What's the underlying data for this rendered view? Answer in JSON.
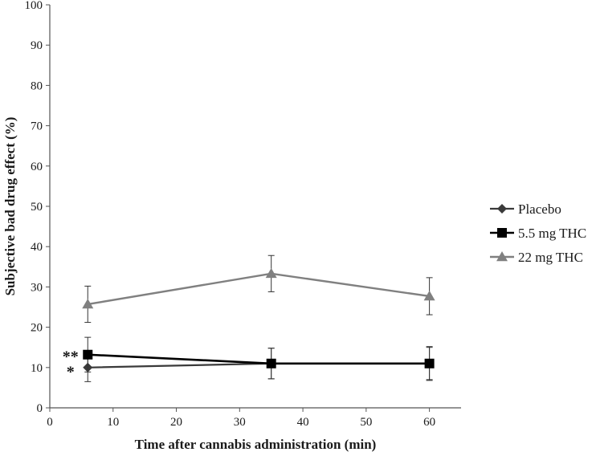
{
  "chart_data": {
    "type": "line",
    "title": "",
    "xlabel": "Time after cannabis administration (min)",
    "ylabel": "Subjective bad drug effect (%)",
    "xlim": [
      0,
      65
    ],
    "ylim": [
      0,
      100
    ],
    "xticks": [
      0,
      10,
      20,
      30,
      40,
      50,
      60
    ],
    "yticks": [
      0,
      10,
      20,
      30,
      40,
      50,
      60,
      70,
      80,
      90,
      100
    ],
    "grid": false,
    "legend_position": "right",
    "series": [
      {
        "name": "Placebo",
        "marker": "diamond",
        "color": "#3a3a3a",
        "x": [
          6,
          35,
          60
        ],
        "y": [
          10,
          11,
          11
        ],
        "error": [
          3.5,
          3.8,
          4.0
        ]
      },
      {
        "name": "5.5 mg THC",
        "marker": "square",
        "color": "#000000",
        "x": [
          6,
          35,
          60
        ],
        "y": [
          13.2,
          11,
          11
        ],
        "error": [
          4.3,
          3.8,
          4.2
        ]
      },
      {
        "name": "22 mg THC",
        "marker": "triangle",
        "color": "#808080",
        "x": [
          6,
          35,
          60
        ],
        "y": [
          25.7,
          33.3,
          27.7
        ],
        "error": [
          4.5,
          4.5,
          4.6
        ]
      }
    ],
    "annotations": [
      {
        "text": "**",
        "x": 2,
        "y": 13.2
      },
      {
        "text": "*",
        "x": 2,
        "y": 9.5
      }
    ]
  }
}
